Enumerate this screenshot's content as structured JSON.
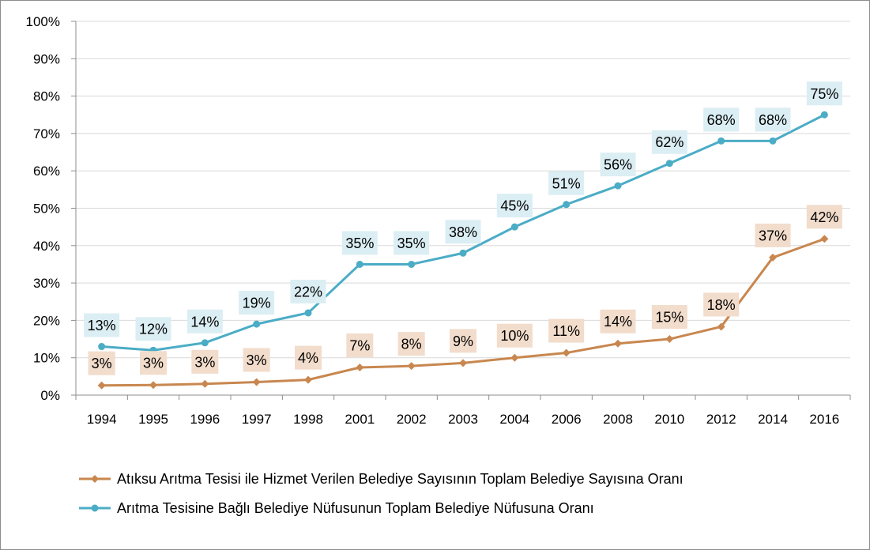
{
  "chart_data": {
    "type": "line",
    "categories": [
      "1994",
      "1995",
      "1996",
      "1997",
      "1998",
      "2001",
      "2002",
      "2003",
      "2004",
      "2006",
      "2008",
      "2010",
      "2012",
      "2014",
      "2016"
    ],
    "ylim": [
      0,
      100
    ],
    "y_ticks": [
      "0%",
      "10%",
      "20%",
      "30%",
      "40%",
      "50%",
      "60%",
      "70%",
      "80%",
      "90%",
      "100%"
    ],
    "grid": true,
    "legend_position": "bottom",
    "series": [
      {
        "name": "Atıksu Arıtma Tesisi ile Hizmet Verilen Belediye Sayısının Toplam Belediye Sayısına Oranı",
        "color": "#C8874F",
        "label_bg": "#F2DCCB",
        "marker": "diamond",
        "values": [
          2.6,
          2.7,
          3.0,
          3.5,
          4.1,
          7.4,
          7.8,
          8.6,
          10.0,
          11.3,
          13.8,
          15.0,
          18.3,
          36.8,
          41.8
        ],
        "labels": [
          "3%",
          "3%",
          "3%",
          "3%",
          "4%",
          "7%",
          "8%",
          "9%",
          "10%",
          "11%",
          "14%",
          "15%",
          "18%",
          "37%",
          "42%"
        ]
      },
      {
        "name": "Arıtma Tesisine Bağlı Belediye Nüfusunun Toplam Belediye Nüfusuna Oranı",
        "color": "#4BACC6",
        "label_bg": "#DBEEF4",
        "marker": "circle",
        "values": [
          13,
          12,
          14,
          19,
          22,
          35,
          35,
          38,
          45,
          51,
          56,
          62,
          68,
          68,
          75
        ],
        "labels": [
          "13%",
          "12%",
          "14%",
          "19%",
          "22%",
          "35%",
          "35%",
          "38%",
          "45%",
          "51%",
          "56%",
          "62%",
          "68%",
          "68%",
          "75%"
        ]
      }
    ]
  }
}
